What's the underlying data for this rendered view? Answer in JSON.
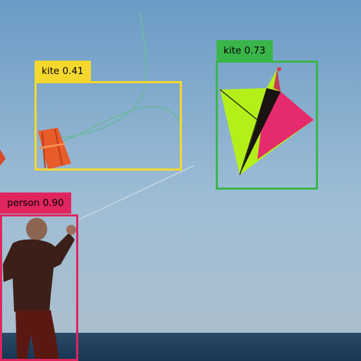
{
  "detections": [
    {
      "label": "kite",
      "score": "0.41",
      "text": "kite 0.41",
      "color": "#f5d82e",
      "text_color": "#000000"
    },
    {
      "label": "kite",
      "score": "0.73",
      "text": "kite 0.73",
      "color": "#3ab54a",
      "text_color": "#000000"
    },
    {
      "label": "person",
      "score": "0.90",
      "text": "person 0.90",
      "color": "#e0245e",
      "text_color": "#000000"
    }
  ],
  "scene": {
    "sky_colors": [
      "#6e9ec6",
      "#9dbcd4",
      "#aabfcd"
    ],
    "sea_color": "#1f3f5e",
    "objects": [
      "orange-kite",
      "green-pink-kite",
      "person-flying-kite",
      "kite-string"
    ]
  }
}
